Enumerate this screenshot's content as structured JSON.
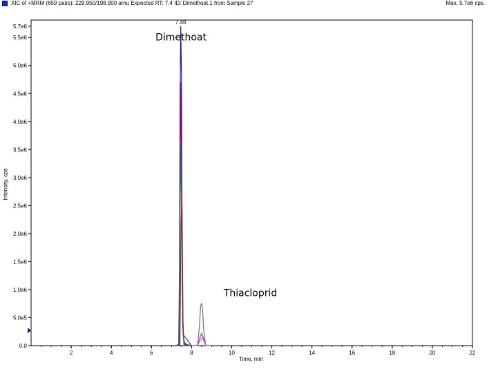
{
  "header": {
    "title": "XIC of +MRM (659 pairs): 229.950/198.900 amu Expected RT: 7.4 ID: Dimethoat.1 from Sample 27",
    "max": "Max. 5.7e6 cps."
  },
  "chart_data": {
    "type": "line",
    "xlabel": "Time, min",
    "ylabel": "Intensity, cps",
    "xlim": [
      0,
      22
    ],
    "ylim": [
      0,
      5700000.0
    ],
    "x_ticks": [
      2,
      4,
      6,
      8,
      10,
      12,
      14,
      16,
      18,
      20,
      22
    ],
    "y_ticks": [
      {
        "value": 0,
        "label": "0.0"
      },
      {
        "value": 500000,
        "label": "5.0e5"
      },
      {
        "value": 1000000,
        "label": "1.0e6"
      },
      {
        "value": 1500000,
        "label": "1.5e6"
      },
      {
        "value": 2000000,
        "label": "2.0e6"
      },
      {
        "value": 2500000,
        "label": "2.5e6"
      },
      {
        "value": 3000000,
        "label": "3.0e6"
      },
      {
        "value": 3500000,
        "label": "3.5e6"
      },
      {
        "value": 4000000,
        "label": "4.0e6"
      },
      {
        "value": 4500000,
        "label": "4.5e6"
      },
      {
        "value": 5000000,
        "label": "5.0e6"
      },
      {
        "value": 5500000,
        "label": "5.5e6"
      },
      {
        "value": 5700000,
        "label": "5.7e6"
      }
    ],
    "series": [
      {
        "color": "#1a1a9a",
        "x": [
          7.2,
          7.36,
          7.4,
          7.43,
          7.46,
          7.5,
          7.53,
          7.58,
          7.64,
          7.75,
          8.0
        ],
        "y": [
          0,
          20000,
          1500000,
          4500000,
          5700000,
          4800000,
          1500000,
          200000,
          60000,
          20000,
          0
        ]
      },
      {
        "color": "#aa0050",
        "x": [
          7.2,
          7.38,
          7.42,
          7.46,
          7.5,
          7.55,
          7.62,
          8.0
        ],
        "y": [
          0,
          10000,
          2500000,
          4700000,
          3200000,
          600000,
          30000,
          0
        ]
      },
      {
        "color": "#107070",
        "x": [
          7.2,
          7.38,
          7.42,
          7.46,
          7.5,
          7.55,
          7.62,
          8.0
        ],
        "y": [
          0,
          10000,
          2000000,
          3600000,
          2600000,
          400000,
          20000,
          0
        ]
      },
      {
        "color": "#a02020",
        "x": [
          7.3,
          7.42,
          7.47,
          7.52,
          7.58,
          8.0
        ],
        "y": [
          0,
          10000,
          2100000,
          2750000,
          200000,
          0
        ]
      },
      {
        "color": "#707070",
        "x": [
          8.0,
          8.3,
          8.4,
          8.45,
          8.5,
          8.55,
          8.6,
          8.7,
          9.0
        ],
        "y": [
          0,
          10000,
          380000,
          700000,
          760000,
          650000,
          300000,
          10000,
          0
        ]
      },
      {
        "color": "#b030b0",
        "x": [
          8.0,
          8.3,
          8.42,
          8.5,
          8.58,
          8.7,
          9.0
        ],
        "y": [
          0,
          5000,
          150000,
          220000,
          150000,
          5000,
          0
        ]
      },
      {
        "color": "#c080d0",
        "x": [
          8.0,
          8.3,
          8.45,
          8.52,
          8.6,
          8.7,
          9.0
        ],
        "y": [
          0,
          3000,
          100000,
          150000,
          90000,
          3000,
          0
        ]
      }
    ],
    "annotations": [
      {
        "text": "7.46",
        "x": 7.46,
        "y": 5700000.0,
        "size": "small"
      },
      {
        "text": "Dimethoat",
        "x": 6.2,
        "y": 5450000.0,
        "size": "large"
      },
      {
        "text": "Thiacloprid",
        "x": 9.6,
        "y": 880000,
        "size": "large"
      }
    ]
  }
}
